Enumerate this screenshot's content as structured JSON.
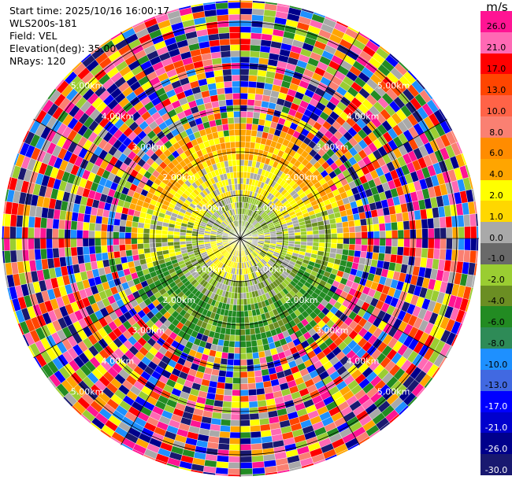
{
  "header": {
    "start_time": "Start time: 2025/10/16 16:00:17",
    "instrument": "WLS200s-181",
    "field": "Field: VEL",
    "elevation": "Elevation(deg): 35.00",
    "nrays": "NRays: 120"
  },
  "colorbar": {
    "unit": "m/s",
    "labels": [
      "26.0",
      "21.0",
      "17.0",
      "13.0",
      "10.0",
      "8.0",
      "6.0",
      "4.0",
      "2.0",
      "1.0",
      "0.0",
      "-1.0",
      "-2.0",
      "-4.0",
      "-6.0",
      "-8.0",
      "-10.0",
      "-13.0",
      "-17.0",
      "-21.0",
      "-26.0",
      "-30.0"
    ],
    "colors": [
      "#ff1493",
      "#ff69b4",
      "#ff0000",
      "#ff4500",
      "#ff6347",
      "#fa8072",
      "#ff8c00",
      "#ffa500",
      "#ffff00",
      "#ffd700",
      "#a9a9a9",
      "#696969",
      "#9acd32",
      "#6b8e23",
      "#228b22",
      "#2e8b57",
      "#1e90ff",
      "#4169e1",
      "#0000ff",
      "#0000cd",
      "#00008b",
      "#191970"
    ]
  },
  "chart_data": {
    "type": "heatmap",
    "subtype": "polar PPI",
    "field": "VEL",
    "units": "m/s",
    "nrays": 120,
    "range_rings_km": [
      1.0,
      2.0,
      3.0,
      4.0,
      5.0
    ],
    "range_labels": [
      "1.00km",
      "2.00km",
      "3.00km",
      "4.00km",
      "5.00km"
    ],
    "azimuth_spokes_deg": [
      0,
      30,
      60,
      90,
      120,
      150,
      180,
      210,
      240,
      270,
      300,
      330
    ],
    "color_scale_min": -30.0,
    "color_scale_max": 26.0,
    "pattern": {
      "inner_core_km": 1.0,
      "valid_data_max_km": 2.4,
      "noise_beyond_km": 2.6,
      "north_side": "positive velocities (yellow/orange)",
      "south_side": "negative velocities (green)"
    }
  }
}
